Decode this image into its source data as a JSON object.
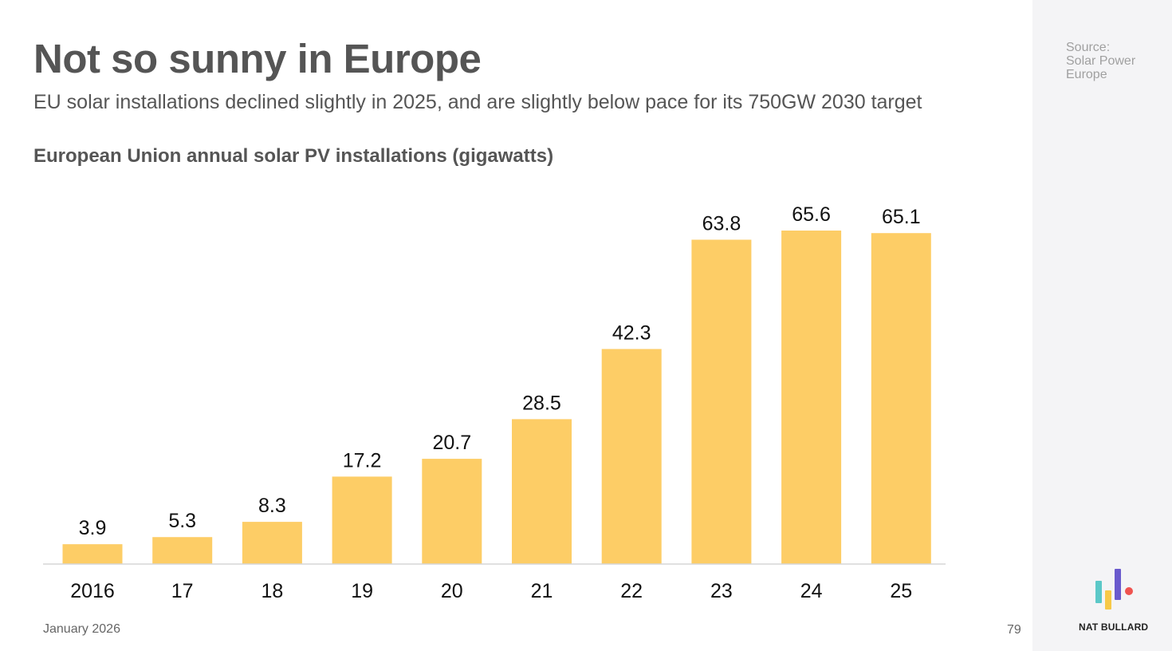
{
  "header": {
    "title": "Not so sunny in Europe",
    "subtitle": "EU solar installations declined slightly in 2025, and are slightly below pace for its 750GW 2030 target"
  },
  "chart_data": {
    "type": "bar",
    "title": "European Union annual solar PV installations (gigawatts)",
    "categories": [
      "2016",
      "17",
      "18",
      "19",
      "20",
      "21",
      "22",
      "23",
      "24",
      "25"
    ],
    "values": [
      3.9,
      5.3,
      8.3,
      17.2,
      20.7,
      28.5,
      42.3,
      63.8,
      65.6,
      65.1
    ],
    "value_labels": [
      "3.9",
      "5.3",
      "8.3",
      "17.2",
      "20.7",
      "28.5",
      "42.3",
      "63.8",
      "65.6",
      "65.1"
    ],
    "xlabel": "",
    "ylabel": "",
    "ylim": [
      0,
      65.6
    ],
    "grid": false,
    "bar_color": "#fdcd66",
    "axis_color": "#d6d6d6"
  },
  "footer": {
    "date": "January 2026",
    "page": "79"
  },
  "sidebar": {
    "source_lines": [
      "Source:",
      "Solar Power",
      "Europe"
    ],
    "brand": "NAT BULLARD",
    "logo_colors": [
      "#5bc8c8",
      "#f7c948",
      "#6a5acd",
      "#ef5350"
    ]
  }
}
